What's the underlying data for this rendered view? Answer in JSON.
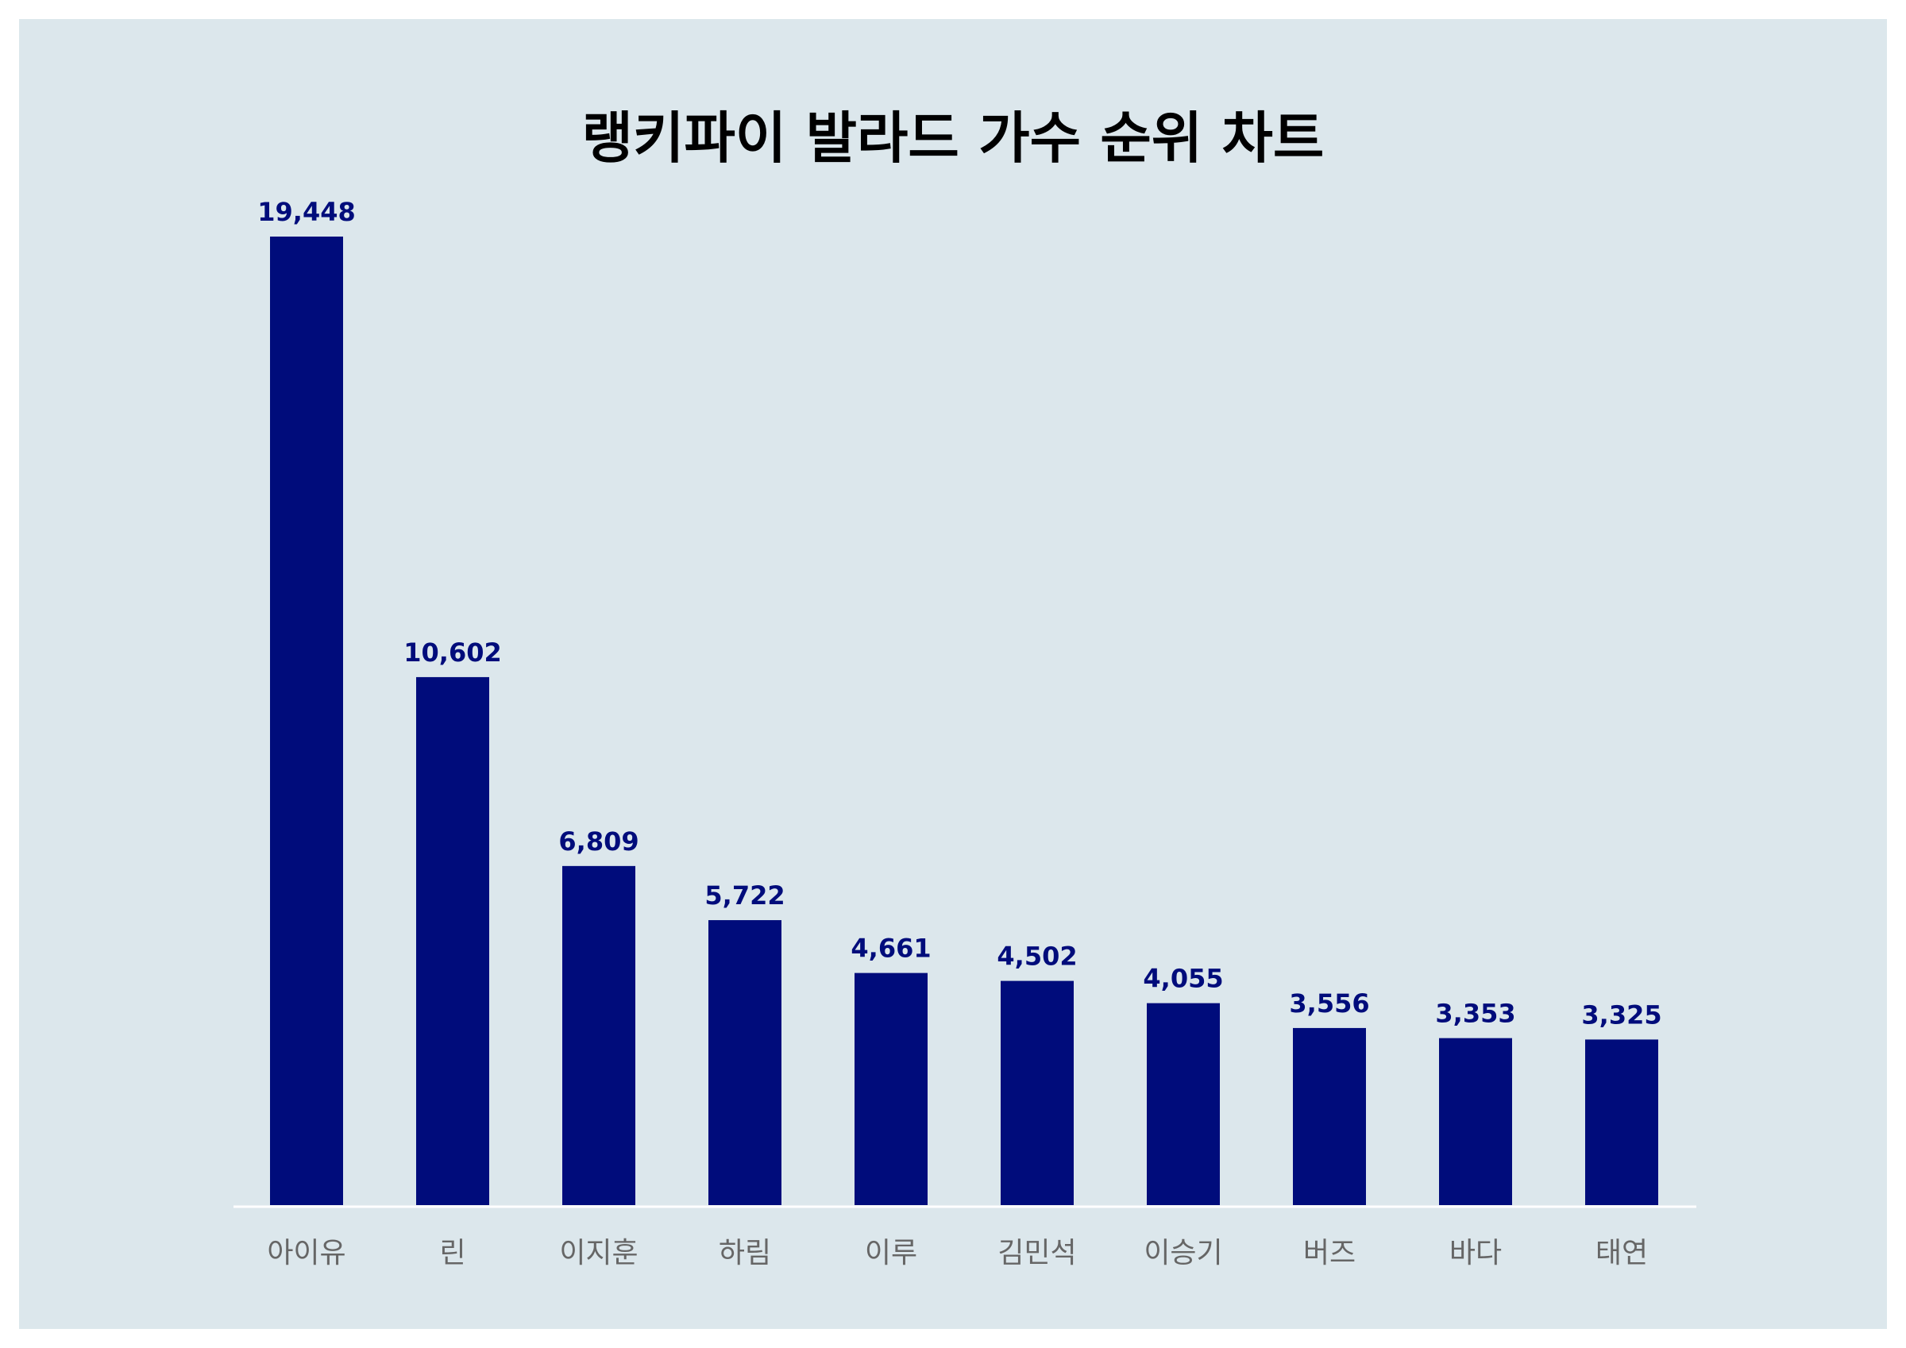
{
  "chart_data": {
    "type": "bar",
    "title": "랭키파이 발라드 가수 순위 차트",
    "xlabel": "",
    "ylabel": "",
    "categories": [
      "아이유",
      "린",
      "이지훈",
      "하림",
      "이루",
      "김민석",
      "이승기",
      "버즈",
      "바다",
      "태연"
    ],
    "values": [
      19448,
      10602,
      6809,
      5722,
      4661,
      4502,
      4055,
      3556,
      3353,
      3325
    ],
    "value_labels": [
      "19,448",
      "10,602",
      "6,809",
      "5,722",
      "4,661",
      "4,502",
      "4,055",
      "3,556",
      "3,353",
      "3,325"
    ],
    "ylim": [
      0,
      19448
    ],
    "grid": false,
    "legend": "none",
    "colors": {
      "bar": "#000c7b",
      "value_label": "#000c7b",
      "category_label": "#666666",
      "background": "#dce7ec",
      "axis": "#ffffff"
    }
  }
}
